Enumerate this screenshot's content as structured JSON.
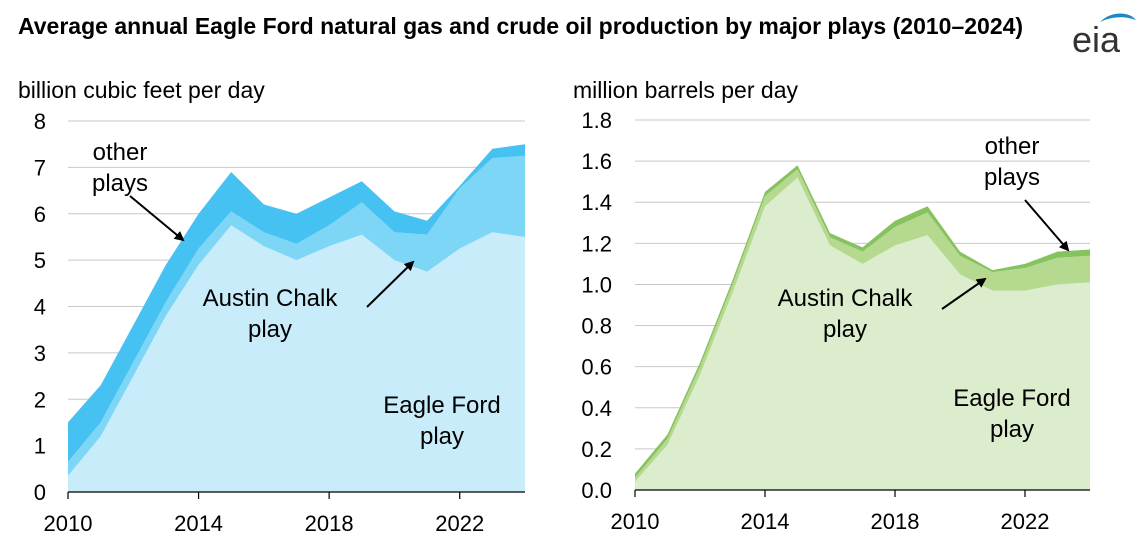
{
  "title": "Average annual Eagle Ford natural gas and crude oil production by major plays (2010–2024)",
  "logo_text": "eia",
  "colors": {
    "gas_eagle_ford": "#c8ecfa",
    "gas_austin_chalk": "#7ed6f7",
    "gas_other": "#45c1f2",
    "oil_eagle_ford": "#dcedcd",
    "oil_austin_chalk": "#b5d98f",
    "oil_other": "#86c25e",
    "grid": "#c8c8c8",
    "logo_blue": "#1e88c7"
  },
  "chart_data": [
    {
      "type": "area",
      "stacked": true,
      "unit_label": "billion cubic feet per day",
      "x": [
        2010,
        2011,
        2012,
        2013,
        2014,
        2015,
        2016,
        2017,
        2018,
        2019,
        2020,
        2021,
        2022,
        2023,
        2024
      ],
      "series": [
        {
          "name": "Eagle Ford play",
          "values": [
            0.35,
            1.2,
            2.5,
            3.8,
            4.9,
            5.75,
            5.3,
            5.0,
            5.3,
            5.55,
            5.0,
            4.75,
            5.25,
            5.6,
            5.5
          ]
        },
        {
          "name": "Austin Chalk play",
          "values": [
            0.3,
            0.3,
            0.3,
            0.3,
            0.35,
            0.3,
            0.3,
            0.35,
            0.45,
            0.7,
            0.6,
            0.8,
            1.3,
            1.6,
            1.75
          ]
        },
        {
          "name": "other plays",
          "values": [
            0.85,
            0.8,
            0.8,
            0.8,
            0.75,
            0.85,
            0.6,
            0.65,
            0.6,
            0.45,
            0.45,
            0.3,
            0.05,
            0.2,
            0.25
          ]
        }
      ],
      "ylim": [
        0,
        8
      ],
      "yticks": [
        "0",
        "1",
        "2",
        "3",
        "4",
        "5",
        "6",
        "7",
        "8"
      ],
      "xticks": [
        "2010",
        "2014",
        "2018",
        "2022"
      ],
      "grid": true,
      "annotations": [
        {
          "lines": [
            "other",
            "plays"
          ]
        },
        {
          "lines": [
            "Austin Chalk",
            "play"
          ]
        },
        {
          "lines": [
            "Eagle Ford",
            "play"
          ]
        }
      ]
    },
    {
      "type": "area",
      "stacked": true,
      "unit_label": "million barrels per day",
      "x": [
        2010,
        2011,
        2012,
        2013,
        2014,
        2015,
        2016,
        2017,
        2018,
        2019,
        2020,
        2021,
        2022,
        2023,
        2024
      ],
      "series": [
        {
          "name": "Eagle Ford play",
          "values": [
            0.04,
            0.22,
            0.56,
            0.96,
            1.38,
            1.52,
            1.19,
            1.1,
            1.19,
            1.24,
            1.05,
            0.97,
            0.97,
            1.0,
            1.01
          ]
        },
        {
          "name": "Austin Chalk play",
          "values": [
            0.02,
            0.03,
            0.04,
            0.04,
            0.05,
            0.04,
            0.04,
            0.06,
            0.09,
            0.11,
            0.09,
            0.09,
            0.11,
            0.13,
            0.13
          ]
        },
        {
          "name": "other plays",
          "values": [
            0.02,
            0.02,
            0.02,
            0.02,
            0.02,
            0.02,
            0.02,
            0.02,
            0.03,
            0.03,
            0.02,
            0.01,
            0.02,
            0.03,
            0.03
          ]
        }
      ],
      "ylim": [
        0,
        1.8
      ],
      "yticks": [
        "0.0",
        "0.2",
        "0.4",
        "0.6",
        "0.8",
        "1.0",
        "1.2",
        "1.4",
        "1.6",
        "1.8"
      ],
      "xticks": [
        "2010",
        "2014",
        "2018",
        "2022"
      ],
      "grid": true,
      "annotations": [
        {
          "lines": [
            "other",
            "plays"
          ]
        },
        {
          "lines": [
            "Austin Chalk",
            "play"
          ]
        },
        {
          "lines": [
            "Eagle Ford",
            "play"
          ]
        }
      ]
    }
  ]
}
